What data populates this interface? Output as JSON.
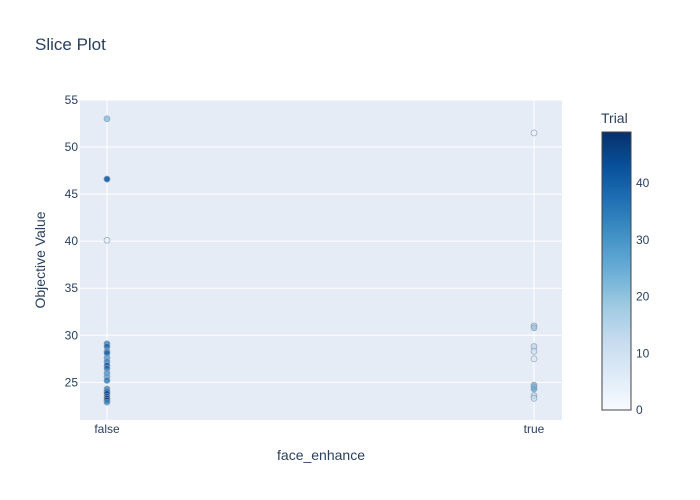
{
  "chart_data": {
    "type": "scatter",
    "title": "Slice Plot",
    "xlabel": "face_enhance",
    "ylabel": "Objective Value",
    "categories": [
      "false",
      "true"
    ],
    "ylim": [
      21,
      55
    ],
    "yticks": [
      25,
      30,
      35,
      40,
      45,
      50,
      55
    ],
    "grid": true,
    "colorbar": {
      "title": "Trial",
      "range": [
        0,
        49
      ],
      "ticks": [
        0,
        10,
        20,
        30,
        40
      ],
      "colorscale": "Blues"
    },
    "series": [
      {
        "points": [
          {
            "x": "false",
            "y": 53.0,
            "trial": 22
          },
          {
            "x": "false",
            "y": 46.6,
            "trial": 45
          },
          {
            "x": "false",
            "y": 46.6,
            "trial": 38
          },
          {
            "x": "false",
            "y": 40.1,
            "trial": 5
          },
          {
            "x": "false",
            "y": 29.1,
            "trial": 36
          },
          {
            "x": "false",
            "y": 28.8,
            "trial": 40
          },
          {
            "x": "false",
            "y": 28.3,
            "trial": 33
          },
          {
            "x": "false",
            "y": 28.1,
            "trial": 41
          },
          {
            "x": "false",
            "y": 27.6,
            "trial": 30
          },
          {
            "x": "false",
            "y": 27.2,
            "trial": 34
          },
          {
            "x": "false",
            "y": 26.8,
            "trial": 44
          },
          {
            "x": "false",
            "y": 26.5,
            "trial": 39
          },
          {
            "x": "false",
            "y": 26.0,
            "trial": 31
          },
          {
            "x": "false",
            "y": 25.6,
            "trial": 28
          },
          {
            "x": "false",
            "y": 25.2,
            "trial": 37
          },
          {
            "x": "false",
            "y": 24.3,
            "trial": 35
          },
          {
            "x": "false",
            "y": 24.0,
            "trial": 42
          },
          {
            "x": "false",
            "y": 23.8,
            "trial": 46
          },
          {
            "x": "false",
            "y": 23.5,
            "trial": 43
          },
          {
            "x": "false",
            "y": 23.3,
            "trial": 47
          },
          {
            "x": "false",
            "y": 23.1,
            "trial": 48
          },
          {
            "x": "false",
            "y": 22.9,
            "trial": 32
          },
          {
            "x": "true",
            "y": 51.5,
            "trial": 3
          },
          {
            "x": "true",
            "y": 31.0,
            "trial": 16
          },
          {
            "x": "true",
            "y": 30.8,
            "trial": 19
          },
          {
            "x": "true",
            "y": 28.8,
            "trial": 14
          },
          {
            "x": "true",
            "y": 28.3,
            "trial": 11
          },
          {
            "x": "true",
            "y": 27.5,
            "trial": 7
          },
          {
            "x": "true",
            "y": 24.7,
            "trial": 25
          },
          {
            "x": "true",
            "y": 24.5,
            "trial": 21
          },
          {
            "x": "true",
            "y": 24.3,
            "trial": 26
          },
          {
            "x": "true",
            "y": 23.6,
            "trial": 15
          },
          {
            "x": "true",
            "y": 23.3,
            "trial": 12
          }
        ]
      }
    ]
  }
}
